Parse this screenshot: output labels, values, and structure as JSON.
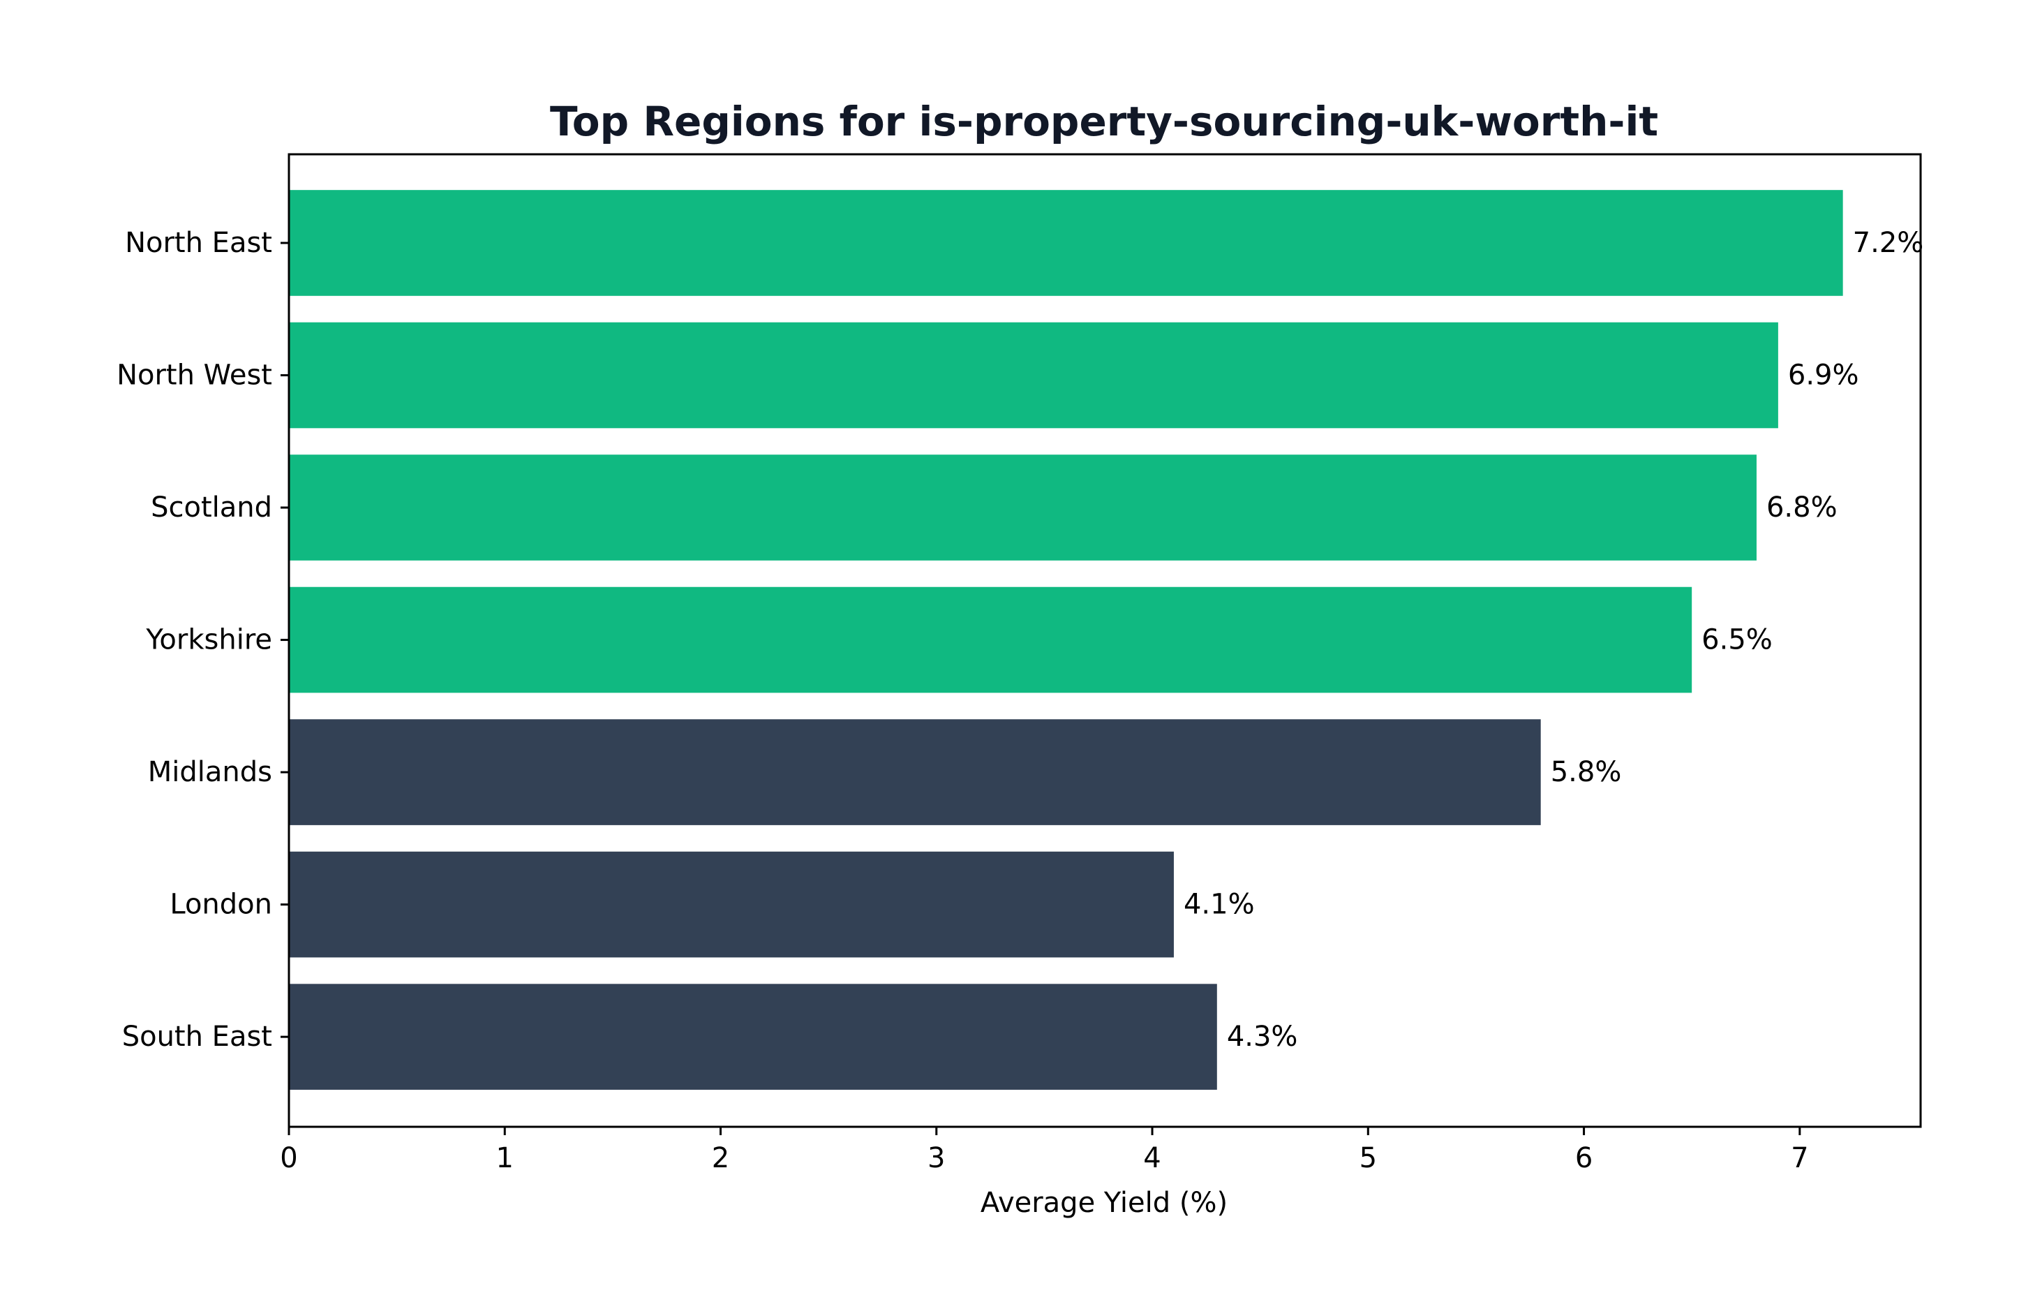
{
  "chart_data": {
    "type": "bar",
    "orientation": "horizontal",
    "title": "Top Regions for is-property-sourcing-uk-worth-it",
    "xlabel": "Average Yield (%)",
    "ylabel": "",
    "xlim": [
      0,
      7.56
    ],
    "xticks": [
      0,
      1,
      2,
      3,
      4,
      5,
      6,
      7
    ],
    "categories": [
      "North East",
      "North West",
      "Scotland",
      "Yorkshire",
      "Midlands",
      "London",
      "South East"
    ],
    "values": [
      7.2,
      6.9,
      6.8,
      6.5,
      5.8,
      4.1,
      4.3
    ],
    "value_labels": [
      "7.2%",
      "6.9%",
      "6.8%",
      "6.5%",
      "5.8%",
      "4.1%",
      "4.3%"
    ],
    "bar_colors": [
      "#10b981",
      "#10b981",
      "#10b981",
      "#10b981",
      "#334155",
      "#334155",
      "#334155"
    ],
    "grid": false,
    "legend": "none"
  },
  "colors": {
    "highlight": "#10b981",
    "default": "#334155",
    "title": "#111827"
  }
}
